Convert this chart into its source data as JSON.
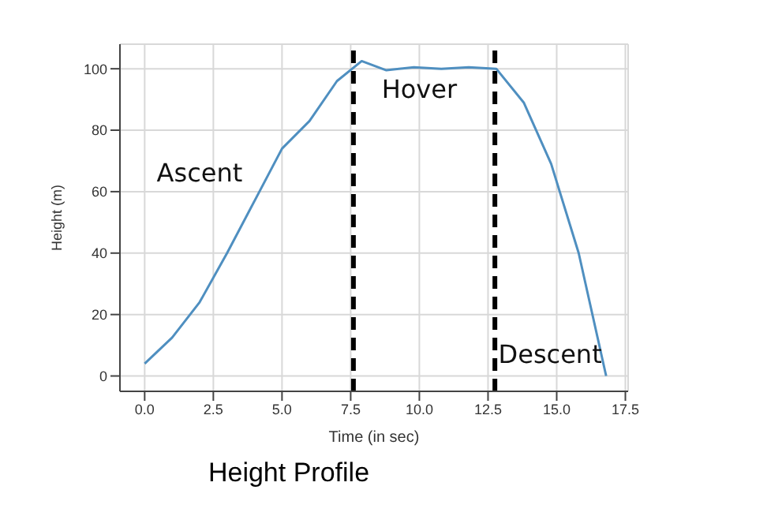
{
  "chart_data": {
    "type": "line",
    "title": "Height Profile",
    "xlabel": "Time (in sec)",
    "ylabel": "Height (m)",
    "x": [
      0,
      1,
      2,
      3,
      4,
      5,
      6,
      7,
      7.9,
      8.8,
      9.8,
      10.8,
      11.8,
      12.8,
      13.8,
      14.8,
      15.8,
      16.8
    ],
    "series": [
      {
        "color": "#4f8fc0",
        "values": [
          4,
          12.5,
          24,
          40,
          57,
          74,
          83,
          96,
          102.5,
          99.5,
          100.5,
          100,
          100.5,
          100,
          89,
          69,
          40,
          0
        ]
      }
    ],
    "xlim": [
      -0.9,
      17.6
    ],
    "xticks": [
      {
        "value": 0,
        "label": "0.0"
      },
      {
        "value": 2.5,
        "label": "2.5"
      },
      {
        "value": 5,
        "label": "5.0"
      },
      {
        "value": 7.5,
        "label": "7.5"
      },
      {
        "value": 10,
        "label": "10.0"
      },
      {
        "value": 12.5,
        "label": "12.5"
      },
      {
        "value": 15,
        "label": "15.0"
      },
      {
        "value": 17.5,
        "label": "17.5"
      }
    ],
    "ylim": [
      -5,
      108
    ],
    "yticks": [
      0,
      20,
      40,
      60,
      80,
      100
    ],
    "grid": true,
    "marker": "none",
    "line_style": "solid",
    "ref_lines": [
      {
        "axis": "x",
        "value": 7.6,
        "color": "#000000",
        "line_style": "dashed"
      },
      {
        "axis": "x",
        "value": 12.75,
        "color": "#000000",
        "line_style": "dashed"
      }
    ],
    "annotations": [
      "Ascent",
      "Hover",
      "Descent"
    ]
  }
}
